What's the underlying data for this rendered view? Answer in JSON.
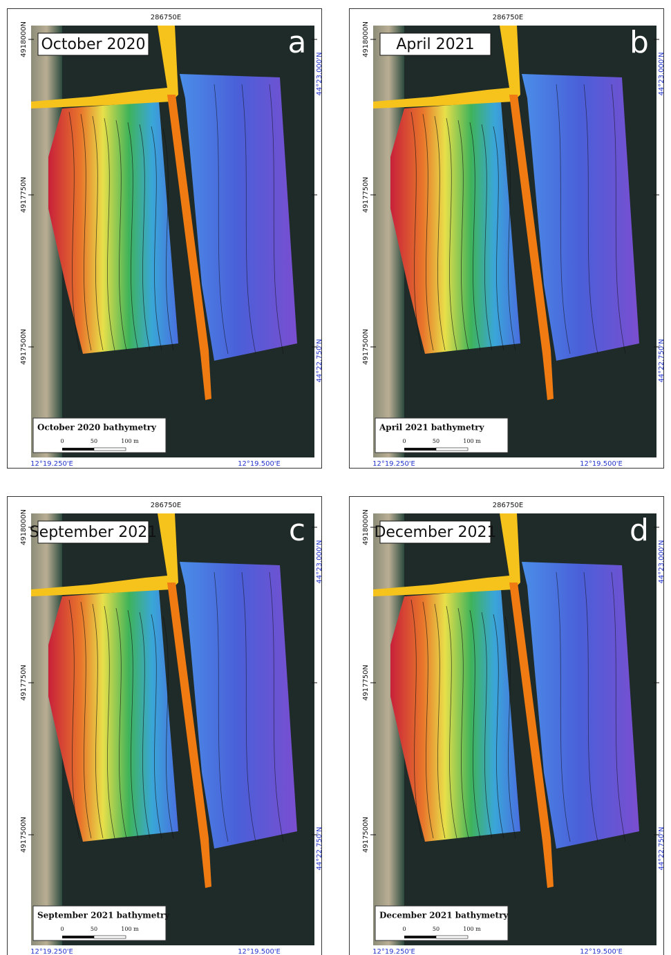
{
  "panels": [
    {
      "title": "October 2020",
      "letter": "a",
      "legend": "October 2020 bathymetry",
      "scale": [
        "0",
        "50",
        "100 m"
      ],
      "easting": "286750E",
      "northings": [
        "4918000N",
        "4917750N",
        "4917500N"
      ],
      "latitudes": [
        "44°23.000'N",
        "44°22.750'N"
      ],
      "longitudes": [
        "12°19.250'E",
        "12°19.500'E"
      ]
    },
    {
      "title": "April 2021",
      "letter": "b",
      "legend": "April 2021 bathymetry",
      "scale": [
        "0",
        "50",
        "100 m"
      ],
      "easting": "286750E",
      "northings": [
        "4918000N",
        "4917750N",
        "4917500N"
      ],
      "latitudes": [
        "44°23.000'N",
        "44°22.750'N"
      ],
      "longitudes": [
        "12°19.250'E",
        "12°19.500'E"
      ]
    },
    {
      "title": "September 2021",
      "letter": "c",
      "legend": "September 2021 bathymetry",
      "scale": [
        "0",
        "50",
        "100 m"
      ],
      "easting": "286750E",
      "northings": [
        "4918000N",
        "4917750N",
        "4917500N"
      ],
      "latitudes": [
        "44°23.000'N",
        "44°22.750'N"
      ],
      "longitudes": [
        "12°19.250'E",
        "12°19.500'E"
      ]
    },
    {
      "title": "December 2021",
      "letter": "d",
      "legend": "December 2021 bathymetry",
      "scale": [
        "0",
        "50",
        "100 m"
      ],
      "easting": "286750E",
      "northings": [
        "4918000N",
        "4917750N",
        "4917500N"
      ],
      "latitudes": [
        "44°23.000'N",
        "44°22.750'N"
      ],
      "longitudes": [
        "12°19.250'E",
        "12°19.500'E"
      ]
    }
  ]
}
